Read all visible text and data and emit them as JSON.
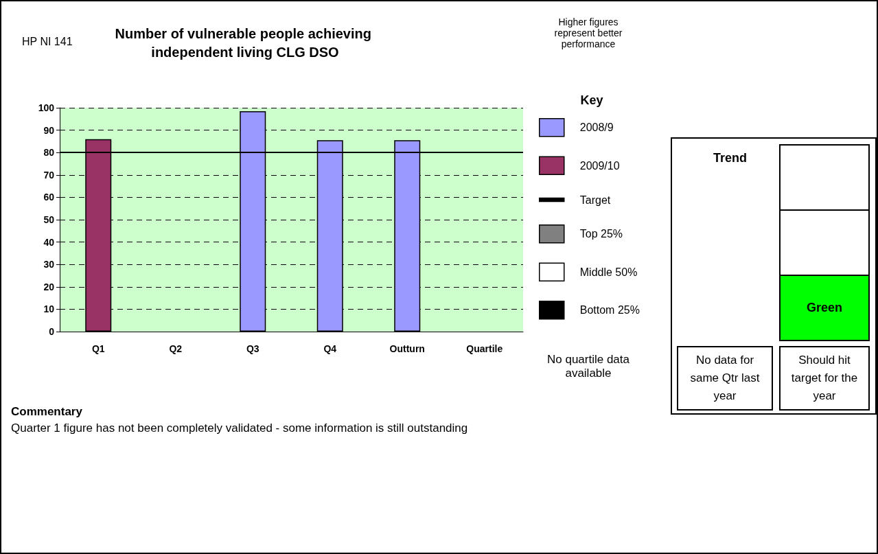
{
  "chart_data": [
    {
      "type": "bar",
      "title": "Number of vulnerable people achieving independent living CLG DSO",
      "legend_title": "Key",
      "categories": [
        "Q1",
        "Q2",
        "Q3",
        "Q4",
        "Outturn",
        "Quartile"
      ],
      "series": [
        {
          "name": "2008/9",
          "color": "#9999ff",
          "values": [
            null,
            null,
            98.5,
            85.5,
            85.5,
            null
          ]
        },
        {
          "name": "2009/10",
          "color": "#993366",
          "values": [
            86,
            null,
            null,
            null,
            null,
            null
          ]
        },
        {
          "name": "Top 25%",
          "color": "#808080",
          "values": [
            null,
            null,
            null,
            null,
            null,
            null
          ]
        },
        {
          "name": "Middle 50%",
          "color": "#ffffff",
          "values": [
            null,
            null,
            null,
            null,
            null,
            null
          ]
        },
        {
          "name": "Bottom 25%",
          "color": "#000000",
          "values": [
            null,
            null,
            null,
            null,
            null,
            null
          ]
        }
      ],
      "ref_lines": [
        {
          "axis": "y",
          "value": 80,
          "label": "Target",
          "color": "#000000"
        }
      ],
      "ylim": [
        0,
        100
      ],
      "yticks": [
        0,
        10,
        20,
        30,
        40,
        50,
        60,
        70,
        80,
        90,
        100
      ],
      "grid": "y",
      "legend": "right",
      "annotations": [
        "HP NI 141",
        "Higher figures represent better performance",
        "No quartile data available",
        "Commentary",
        "Quarter 1 figure has not been completely validated - some information is still outstanding"
      ]
    },
    {
      "type": "other",
      "title": "Trend",
      "colors": [
        "#ffffff",
        "#ffffff",
        "#00ff00"
      ],
      "annotations": [
        "No data for same Qtr last year",
        "Green",
        "Should hit target for the year"
      ]
    }
  ]
}
